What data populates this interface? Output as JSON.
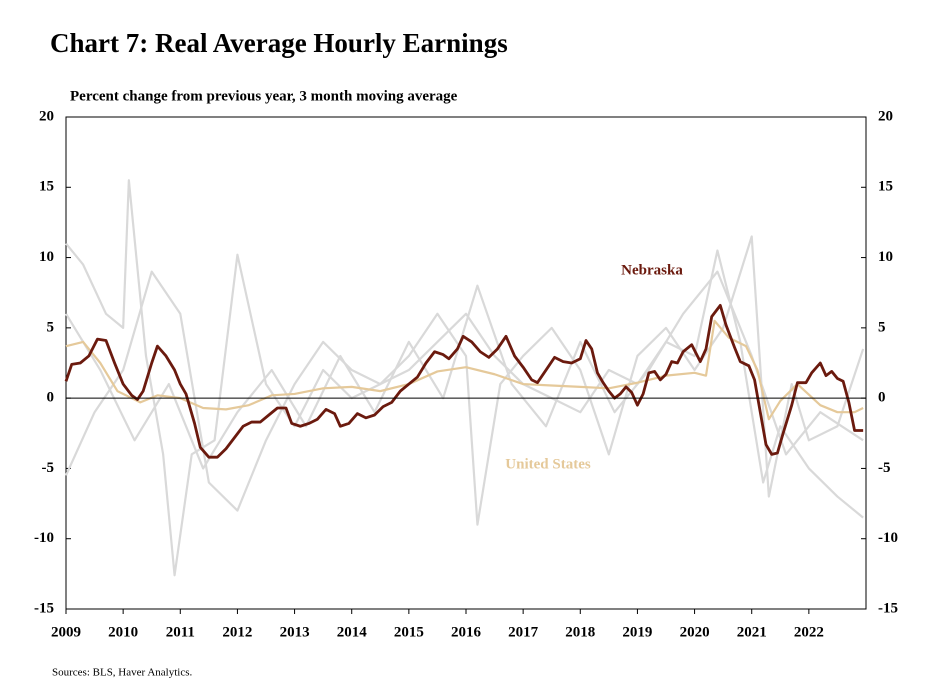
{
  "chart_data": {
    "type": "line",
    "title": "Chart 7: Real Average Hourly Earnings",
    "subtitle": "Percent change from previous year, 3 month moving average",
    "source": "Sources: BLS,  Haver Analytics.",
    "xlim": [
      2009,
      2023
    ],
    "xticks": [
      2009,
      2010,
      2011,
      2012,
      2013,
      2014,
      2015,
      2016,
      2017,
      2018,
      2019,
      2020,
      2021,
      2022
    ],
    "ylim": [
      -15,
      20
    ],
    "yticks": [
      -15,
      -10,
      -5,
      0,
      5,
      10,
      15,
      20
    ],
    "series": [
      {
        "color": "#d9d9d9",
        "x": [
          2009,
          2009.3,
          2009.7,
          2010,
          2010.1,
          2010.4,
          2010.7,
          2010.9,
          2011.2,
          2011.6,
          2012,
          2012.5,
          2013,
          2013.5,
          2014,
          2014.5,
          2015,
          2015.5,
          2016,
          2016.5,
          2017,
          2017.5,
          2018,
          2018.5,
          2019,
          2019.5,
          2020,
          2020.4,
          2020.8,
          2021.2,
          2021.5,
          2022,
          2022.5,
          2022.95
        ],
        "values": [
          11,
          9.5,
          6,
          5,
          15.5,
          3,
          -4,
          -12.6,
          -4,
          -3,
          10.2,
          1,
          -2,
          2,
          0,
          1,
          2,
          4,
          6,
          3,
          1,
          0,
          -1,
          2,
          1,
          4,
          3,
          10.5,
          4,
          -6,
          -2,
          -5,
          -7,
          -8.5
        ]
      },
      {
        "color": "#d9d9d9",
        "x": [
          2009,
          2009.5,
          2010,
          2010.5,
          2011,
          2011.5,
          2012,
          2012.5,
          2013,
          2013.5,
          2014,
          2014.5,
          2015,
          2015.5,
          2016,
          2016.2,
          2016.6,
          2017,
          2017.5,
          2018,
          2018.5,
          2019,
          2019.5,
          2020,
          2020.5,
          2021,
          2021.3,
          2021.7,
          2022,
          2022.5,
          2022.95
        ],
        "values": [
          -5.5,
          -1,
          2,
          9,
          6,
          -6,
          -8,
          -3,
          1,
          4,
          2,
          1,
          3,
          6,
          3,
          -9,
          1,
          3,
          5,
          2,
          -4,
          3,
          5,
          2,
          5,
          11.5,
          -7,
          1,
          -3,
          -2,
          3.5
        ]
      },
      {
        "color": "#d9d9d9",
        "x": [
          2009,
          2009.6,
          2010.2,
          2010.8,
          2011.4,
          2012,
          2012.6,
          2013.2,
          2013.8,
          2014.4,
          2015,
          2015.6,
          2016.2,
          2016.8,
          2017.4,
          2018,
          2018.6,
          2019.2,
          2019.8,
          2020.4,
          2021,
          2021.6,
          2022.2,
          2022.95
        ],
        "values": [
          6,
          2,
          -3,
          1,
          -5,
          -1,
          2,
          -2,
          3,
          -1,
          4,
          0,
          8,
          1,
          -2,
          4,
          -1,
          2,
          6,
          9,
          3,
          -4,
          -1,
          -3
        ]
      },
      {
        "name": "United States",
        "color": "#e5c99a",
        "x": [
          2009,
          2009.3,
          2009.6,
          2009.9,
          2010.3,
          2010.6,
          2011,
          2011.4,
          2011.8,
          2012.2,
          2012.6,
          2013,
          2013.5,
          2014,
          2014.5,
          2015,
          2015.5,
          2016,
          2016.5,
          2017,
          2017.5,
          2018,
          2018.5,
          2019,
          2019.5,
          2020,
          2020.2,
          2020.35,
          2020.6,
          2020.9,
          2021.1,
          2021.3,
          2021.5,
          2021.8,
          2022.2,
          2022.5,
          2022.8,
          2022.95
        ],
        "values": [
          3.7,
          4.0,
          2.5,
          0.5,
          -0.3,
          0.2,
          0.0,
          -0.7,
          -0.8,
          -0.5,
          0.2,
          0.3,
          0.7,
          0.8,
          0.5,
          1.0,
          1.9,
          2.2,
          1.7,
          1.0,
          0.9,
          0.8,
          0.7,
          1.1,
          1.6,
          1.8,
          1.6,
          5.5,
          4.3,
          3.7,
          2.0,
          -1.5,
          -0.2,
          1.0,
          -0.5,
          -1.0,
          -1.0,
          -0.7
        ]
      },
      {
        "name": "Nebraska",
        "color": "#6b1a0e",
        "x": [
          2009,
          2009.1,
          2009.25,
          2009.4,
          2009.55,
          2009.7,
          2009.85,
          2010,
          2010.15,
          2010.25,
          2010.35,
          2010.5,
          2010.6,
          2010.75,
          2010.9,
          2011,
          2011.1,
          2011.25,
          2011.35,
          2011.5,
          2011.65,
          2011.8,
          2011.95,
          2012.1,
          2012.25,
          2012.4,
          2012.55,
          2012.7,
          2012.85,
          2012.95,
          2013.1,
          2013.25,
          2013.4,
          2013.55,
          2013.7,
          2013.8,
          2013.95,
          2014.1,
          2014.25,
          2014.4,
          2014.55,
          2014.7,
          2014.85,
          2015,
          2015.15,
          2015.3,
          2015.45,
          2015.6,
          2015.7,
          2015.85,
          2015.95,
          2016.1,
          2016.25,
          2016.4,
          2016.55,
          2016.7,
          2016.85,
          2017,
          2017.15,
          2017.25,
          2017.4,
          2017.55,
          2017.7,
          2017.85,
          2018,
          2018.1,
          2018.2,
          2018.3,
          2018.4,
          2018.5,
          2018.6,
          2018.7,
          2018.8,
          2018.9,
          2019,
          2019.1,
          2019.2,
          2019.3,
          2019.4,
          2019.5,
          2019.6,
          2019.7,
          2019.8,
          2019.95,
          2020.1,
          2020.2,
          2020.3,
          2020.45,
          2020.55,
          2020.7,
          2020.8,
          2020.95,
          2021.05,
          2021.15,
          2021.25,
          2021.35,
          2021.45,
          2021.55,
          2021.7,
          2021.8,
          2021.95,
          2022.05,
          2022.2,
          2022.3,
          2022.4,
          2022.5,
          2022.6,
          2022.7,
          2022.8,
          2022.95
        ],
        "values": [
          1.2,
          2.4,
          2.5,
          3.0,
          4.2,
          4.1,
          2.5,
          1.0,
          0.2,
          -0.1,
          0.5,
          2.5,
          3.7,
          3.0,
          2.0,
          1.0,
          0.3,
          -1.8,
          -3.5,
          -4.2,
          -4.2,
          -3.6,
          -2.8,
          -2.0,
          -1.7,
          -1.7,
          -1.2,
          -0.7,
          -0.7,
          -1.8,
          -2.0,
          -1.8,
          -1.5,
          -0.8,
          -1.1,
          -2.0,
          -1.8,
          -1.1,
          -1.4,
          -1.2,
          -0.6,
          -0.3,
          0.5,
          1.0,
          1.5,
          2.5,
          3.3,
          3.1,
          2.8,
          3.5,
          4.4,
          4.0,
          3.3,
          2.9,
          3.5,
          4.4,
          3.0,
          2.2,
          1.3,
          1.1,
          2.0,
          2.9,
          2.6,
          2.5,
          2.8,
          4.1,
          3.5,
          1.8,
          1.1,
          0.5,
          0.0,
          0.3,
          0.8,
          0.4,
          -0.5,
          0.3,
          1.8,
          1.9,
          1.3,
          1.7,
          2.6,
          2.5,
          3.3,
          3.8,
          2.6,
          3.5,
          5.8,
          6.6,
          5.2,
          3.6,
          2.6,
          2.3,
          1.3,
          -1.0,
          -3.3,
          -4.0,
          -3.9,
          -2.5,
          -0.5,
          1.1,
          1.1,
          1.8,
          2.5,
          1.6,
          1.9,
          1.4,
          1.2,
          -0.3,
          -2.3,
          -2.3
        ]
      }
    ]
  }
}
